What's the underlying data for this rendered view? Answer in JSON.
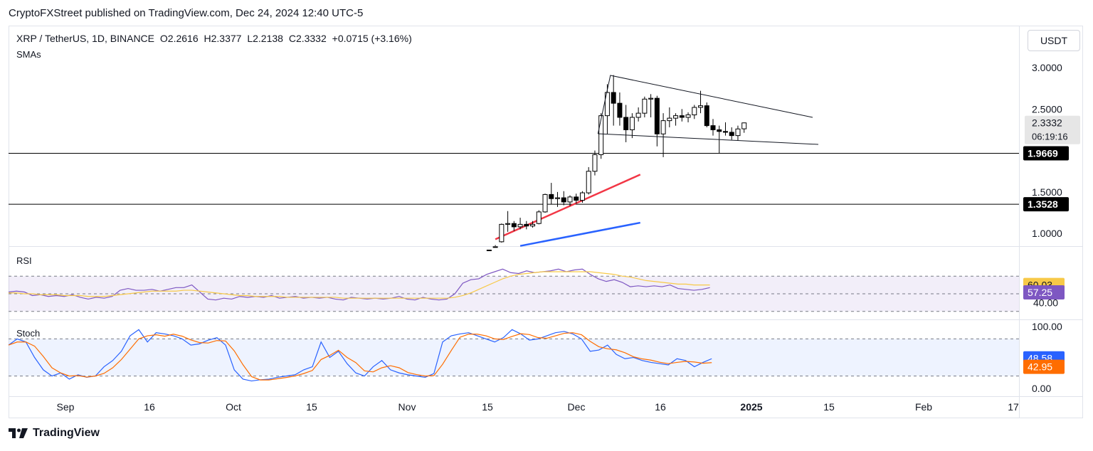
{
  "header": {
    "publisher": "CryptoFXStreet published on TradingView.com, Dec 24, 2024 12:40 UTC-5"
  },
  "legend": {
    "symbol": "XRP / TetherUS, 1D, BINANCE",
    "open": "O2.2616",
    "high": "H2.3377",
    "low": "L2.2138",
    "close": "C2.3332",
    "change": "+0.0715 (+3.16%)",
    "indicator": "SMAs"
  },
  "currency_button": "USDT",
  "panes": {
    "rsi_label": "RSI",
    "stoch_label": "Stoch"
  },
  "footer": {
    "brand": "TradingView"
  },
  "colors": {
    "up_candle": "#ffffff",
    "down_candle": "#000000",
    "sma_red": "#f23645",
    "sma_blue": "#2962ff",
    "rsi_line": "#7e57c2",
    "rsi_ma": "#f7c948",
    "stoch_k": "#2962ff",
    "stoch_d": "#ff6d00"
  },
  "chart_data": {
    "type": "candlestick",
    "price_axis": {
      "ticks": [
        "3.0000",
        "2.5000",
        "1.5000",
        "1.0000"
      ],
      "range": [
        0.85,
        3.2
      ]
    },
    "last_price": {
      "value": "2.3332",
      "countdown": "06:19:16"
    },
    "horizontal_levels": [
      "1.9669",
      "1.3528"
    ],
    "x_labels": [
      "Sep",
      "16",
      "Oct",
      "15",
      "Nov",
      "15",
      "Dec",
      "16",
      "2025",
      "15",
      "Feb",
      "17"
    ],
    "candles": [
      {
        "d": "Nov 12",
        "o": 0.78,
        "h": 0.82,
        "l": 0.74,
        "c": 0.8
      },
      {
        "d": "Nov 13",
        "o": 0.8,
        "h": 0.86,
        "l": 0.76,
        "c": 0.84
      },
      {
        "d": "Nov 15",
        "o": 0.9,
        "h": 1.12,
        "l": 0.89,
        "c": 1.11
      },
      {
        "d": "Nov 16",
        "o": 1.11,
        "h": 1.27,
        "l": 1.02,
        "c": 1.12
      },
      {
        "d": "Nov 17",
        "o": 1.12,
        "h": 1.15,
        "l": 1.03,
        "c": 1.08
      },
      {
        "d": "Nov 18",
        "o": 1.08,
        "h": 1.19,
        "l": 1.05,
        "c": 1.11
      },
      {
        "d": "Nov 19",
        "o": 1.11,
        "h": 1.15,
        "l": 1.05,
        "c": 1.09
      },
      {
        "d": "Nov 20",
        "o": 1.09,
        "h": 1.15,
        "l": 1.07,
        "c": 1.11
      },
      {
        "d": "Nov 21",
        "o": 1.12,
        "h": 1.28,
        "l": 1.11,
        "c": 1.26
      },
      {
        "d": "Nov 22",
        "o": 1.26,
        "h": 1.48,
        "l": 1.25,
        "c": 1.47
      },
      {
        "d": "Nov 23",
        "o": 1.47,
        "h": 1.61,
        "l": 1.35,
        "c": 1.42
      },
      {
        "d": "Nov 24",
        "o": 1.42,
        "h": 1.5,
        "l": 1.32,
        "c": 1.43
      },
      {
        "d": "Nov 25",
        "o": 1.43,
        "h": 1.51,
        "l": 1.34,
        "c": 1.38
      },
      {
        "d": "Nov 26",
        "o": 1.38,
        "h": 1.46,
        "l": 1.33,
        "c": 1.44
      },
      {
        "d": "Nov 27",
        "o": 1.44,
        "h": 1.48,
        "l": 1.36,
        "c": 1.4
      },
      {
        "d": "Nov 28",
        "o": 1.4,
        "h": 1.51,
        "l": 1.37,
        "c": 1.49
      },
      {
        "d": "Nov 29",
        "o": 1.49,
        "h": 1.8,
        "l": 1.47,
        "c": 1.75
      },
      {
        "d": "Nov 30",
        "o": 1.75,
        "h": 2.0,
        "l": 1.7,
        "c": 1.95
      },
      {
        "d": "Dec 1",
        "o": 1.95,
        "h": 2.45,
        "l": 1.9,
        "c": 2.42
      },
      {
        "d": "Dec 2",
        "o": 2.42,
        "h": 2.8,
        "l": 2.2,
        "c": 2.7
      },
      {
        "d": "Dec 3",
        "o": 2.7,
        "h": 2.91,
        "l": 2.3,
        "c": 2.57
      },
      {
        "d": "Dec 4",
        "o": 2.57,
        "h": 2.7,
        "l": 2.3,
        "c": 2.4
      },
      {
        "d": "Dec 5",
        "o": 2.4,
        "h": 2.55,
        "l": 2.1,
        "c": 2.25
      },
      {
        "d": "Dec 6",
        "o": 2.25,
        "h": 2.45,
        "l": 2.15,
        "c": 2.4
      },
      {
        "d": "Dec 7",
        "o": 2.4,
        "h": 2.52,
        "l": 2.35,
        "c": 2.45
      },
      {
        "d": "Dec 8",
        "o": 2.45,
        "h": 2.65,
        "l": 2.4,
        "c": 2.62
      },
      {
        "d": "Dec 9",
        "o": 2.62,
        "h": 2.68,
        "l": 2.4,
        "c": 2.63
      },
      {
        "d": "Dec 10",
        "o": 2.63,
        "h": 2.66,
        "l": 2.05,
        "c": 2.2
      },
      {
        "d": "Dec 11",
        "o": 2.2,
        "h": 2.45,
        "l": 1.92,
        "c": 2.36
      },
      {
        "d": "Dec 12",
        "o": 2.36,
        "h": 2.52,
        "l": 2.28,
        "c": 2.39
      },
      {
        "d": "Dec 13",
        "o": 2.39,
        "h": 2.45,
        "l": 2.3,
        "c": 2.42
      },
      {
        "d": "Dec 14",
        "o": 2.42,
        "h": 2.5,
        "l": 2.35,
        "c": 2.4
      },
      {
        "d": "Dec 15",
        "o": 2.4,
        "h": 2.46,
        "l": 2.34,
        "c": 2.43
      },
      {
        "d": "Dec 16",
        "o": 2.43,
        "h": 2.55,
        "l": 2.38,
        "c": 2.52
      },
      {
        "d": "Dec 17",
        "o": 2.52,
        "h": 2.72,
        "l": 2.45,
        "c": 2.54
      },
      {
        "d": "Dec 18",
        "o": 2.54,
        "h": 2.58,
        "l": 2.28,
        "c": 2.3
      },
      {
        "d": "Dec 19",
        "o": 2.3,
        "h": 2.38,
        "l": 2.18,
        "c": 2.25
      },
      {
        "d": "Dec 20",
        "o": 2.25,
        "h": 2.3,
        "l": 1.97,
        "c": 2.23
      },
      {
        "d": "Dec 21",
        "o": 2.23,
        "h": 2.34,
        "l": 2.18,
        "c": 2.22
      },
      {
        "d": "Dec 22",
        "o": 2.22,
        "h": 2.28,
        "l": 2.13,
        "c": 2.18
      },
      {
        "d": "Dec 23",
        "o": 2.18,
        "h": 2.3,
        "l": 2.12,
        "c": 2.26
      },
      {
        "d": "Dec 24",
        "o": 2.2616,
        "h": 2.3377,
        "l": 2.2138,
        "c": 2.3332
      }
    ],
    "sma_red": [
      [
        1.0,
        0.93
      ],
      [
        24.3,
        1.71
      ]
    ],
    "sma_blue": [
      [
        5.0,
        0.85
      ],
      [
        24.3,
        1.13
      ]
    ],
    "rsi": {
      "axis_ticks": [
        "40.00"
      ],
      "rsi_value": "57.25",
      "ma_value": "60.03",
      "bands": [
        70,
        50,
        30
      ]
    },
    "stoch": {
      "axis_ticks": [
        "100.00",
        "0.00"
      ],
      "k_value": "48.58",
      "d_value": "42.95",
      "bands": [
        80,
        20
      ]
    }
  }
}
